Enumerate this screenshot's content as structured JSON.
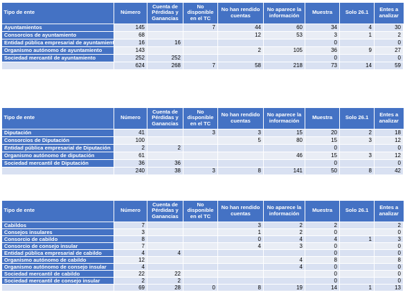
{
  "headers": [
    "Tipo de ente",
    "Número",
    "Cuenta de Pérdidas y Ganancias",
    "No disponible en el TC",
    "No han rendido cuentas",
    "No aparece la información",
    "Muestra",
    "Solo 26.1",
    "Entes a analizar"
  ],
  "tables": [
    {
      "rows": [
        {
          "name": "Ayuntamientos",
          "v": [
            "145",
            "",
            "7",
            "44",
            "60",
            "34",
            "4",
            "30"
          ]
        },
        {
          "name": "Consorcios de ayuntamiento",
          "v": [
            "68",
            "",
            "",
            "12",
            "53",
            "3",
            "1",
            "2"
          ]
        },
        {
          "name": "Entidad pública empresarial de ayuntamiento",
          "v": [
            "16",
            "16",
            "",
            "",
            "",
            "0",
            "",
            "0"
          ]
        },
        {
          "name": "Organismo autónomo de ayuntamiento",
          "v": [
            "143",
            "",
            "",
            "2",
            "105",
            "36",
            "9",
            "27"
          ]
        },
        {
          "name": "Sociedad mercantil de ayuntamiento",
          "v": [
            "252",
            "252",
            "",
            "",
            "",
            "0",
            "",
            "0"
          ]
        }
      ],
      "total": [
        "624",
        "268",
        "7",
        "58",
        "218",
        "73",
        "14",
        "59"
      ]
    },
    {
      "rows": [
        {
          "name": "Diputación",
          "v": [
            "41",
            "",
            "3",
            "3",
            "15",
            "20",
            "2",
            "18"
          ]
        },
        {
          "name": "Consorcios de Diputación",
          "v": [
            "100",
            "",
            "",
            "5",
            "80",
            "15",
            "3",
            "12"
          ]
        },
        {
          "name": "Entidad pública empresarial de Diputación",
          "v": [
            "2",
            "2",
            "",
            "",
            "",
            "0",
            "",
            "0"
          ]
        },
        {
          "name": "Organismo autónomo de diputación",
          "v": [
            "61",
            "",
            "",
            "",
            "46",
            "15",
            "3",
            "12"
          ]
        },
        {
          "name": "Sociedad mercantil de Diputación",
          "v": [
            "36",
            "36",
            "",
            "",
            "",
            "0",
            "",
            "0"
          ]
        }
      ],
      "total": [
        "240",
        "38",
        "3",
        "8",
        "141",
        "50",
        "8",
        "42"
      ]
    },
    {
      "rows": [
        {
          "name": "Cabildos",
          "v": [
            "7",
            "",
            "",
            "3",
            "2",
            "2",
            "",
            "2"
          ]
        },
        {
          "name": "Consejos insulares",
          "v": [
            "3",
            "",
            "",
            "1",
            "2",
            "0",
            "",
            "0"
          ]
        },
        {
          "name": "Consorcio de cabildo",
          "v": [
            "8",
            "",
            "",
            "0",
            "4",
            "4",
            "1",
            "3"
          ]
        },
        {
          "name": "Consorcio de consejo insular",
          "v": [
            "7",
            "",
            "",
            "4",
            "3",
            "0",
            "",
            "0"
          ]
        },
        {
          "name": "Entidad pública empresarial de cabildo",
          "v": [
            "4",
            "4",
            "",
            "",
            "",
            "0",
            "",
            "0"
          ]
        },
        {
          "name": "Organismo autónomo de cabildo",
          "v": [
            "12",
            "",
            "",
            "",
            "4",
            "8",
            "",
            "8"
          ]
        },
        {
          "name": "Organismo autónomo de consejo insular",
          "v": [
            "4",
            "",
            "",
            "",
            "4",
            "0",
            "",
            "0"
          ]
        },
        {
          "name": "Sociedad mercantil de cabildo",
          "v": [
            "22",
            "22",
            "",
            "",
            "",
            "0",
            "",
            "0"
          ]
        },
        {
          "name": "Sociedad mercantil de consejo insular",
          "v": [
            "2",
            "2",
            "",
            "",
            "",
            "0",
            "",
            "0"
          ]
        }
      ],
      "total": [
        "69",
        "28",
        "0",
        "8",
        "19",
        "14",
        "1",
        "13"
      ]
    }
  ]
}
